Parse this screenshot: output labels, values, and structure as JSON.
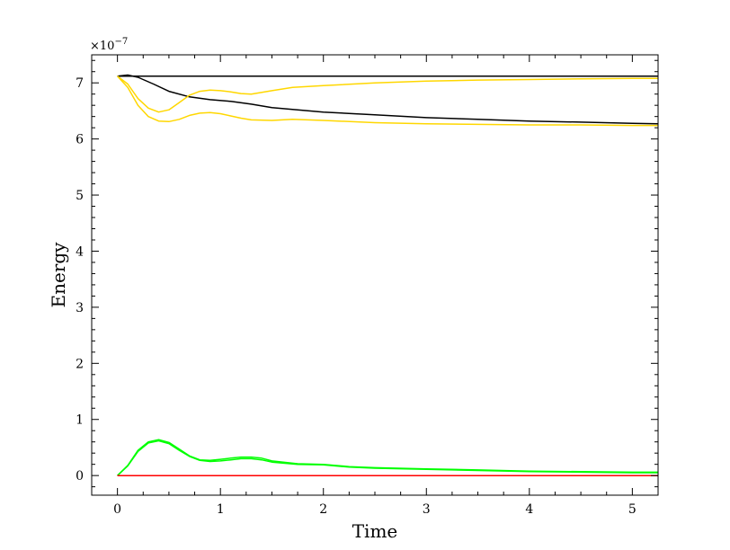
{
  "chart_data": {
    "type": "line",
    "title": "",
    "xlabel": "Time",
    "ylabel": "Energy",
    "y_scale_prefix": "×10",
    "y_scale_exponent": "−7",
    "xlim": [
      -0.25,
      5.25
    ],
    "ylim": [
      -0.35,
      7.5
    ],
    "x_ticks": [
      0,
      1,
      2,
      3,
      4,
      5
    ],
    "x_tick_labels": [
      "0",
      "1",
      "2",
      "3",
      "4",
      "5"
    ],
    "y_ticks": [
      0,
      1,
      2,
      3,
      4,
      5,
      6,
      7
    ],
    "y_tick_labels": [
      "0",
      "1",
      "2",
      "3",
      "4",
      "5",
      "6",
      "7"
    ],
    "grid": false,
    "series": [
      {
        "color": "#000000",
        "x": [
          0,
          0.5,
          1,
          2,
          3,
          4,
          5,
          5.25
        ],
        "y": [
          7.12,
          7.12,
          7.12,
          7.12,
          7.12,
          7.12,
          7.12,
          7.12
        ]
      },
      {
        "color": "#000000",
        "x": [
          0,
          0.1,
          0.2,
          0.35,
          0.5,
          0.7,
          0.9,
          1.1,
          1.3,
          1.5,
          1.75,
          2.0,
          2.5,
          3.0,
          3.5,
          4.0,
          4.5,
          5.0,
          5.25
        ],
        "y": [
          7.12,
          7.14,
          7.1,
          6.98,
          6.85,
          6.75,
          6.7,
          6.67,
          6.62,
          6.56,
          6.52,
          6.48,
          6.43,
          6.38,
          6.35,
          6.32,
          6.3,
          6.28,
          6.27
        ]
      },
      {
        "color": "#ffd700",
        "x": [
          0,
          0.1,
          0.2,
          0.3,
          0.4,
          0.5,
          0.6,
          0.7,
          0.8,
          0.9,
          1.0,
          1.1,
          1.2,
          1.3,
          1.5,
          1.7,
          2.0,
          2.5,
          3.0,
          3.5,
          4.0,
          4.5,
          5.0,
          5.25
        ],
        "y": [
          7.12,
          6.98,
          6.72,
          6.55,
          6.48,
          6.52,
          6.65,
          6.78,
          6.85,
          6.87,
          6.86,
          6.84,
          6.81,
          6.8,
          6.86,
          6.92,
          6.95,
          7.0,
          7.03,
          7.05,
          7.06,
          7.07,
          7.08,
          7.08
        ]
      },
      {
        "color": "#ffd700",
        "x": [
          0,
          0.1,
          0.2,
          0.3,
          0.4,
          0.5,
          0.6,
          0.7,
          0.8,
          0.9,
          1.0,
          1.1,
          1.2,
          1.3,
          1.5,
          1.7,
          2.0,
          2.5,
          3.0,
          3.5,
          4.0,
          4.5,
          5.0,
          5.25
        ],
        "y": [
          7.12,
          6.92,
          6.6,
          6.4,
          6.32,
          6.31,
          6.35,
          6.42,
          6.46,
          6.47,
          6.45,
          6.41,
          6.37,
          6.34,
          6.33,
          6.35,
          6.33,
          6.29,
          6.27,
          6.26,
          6.25,
          6.25,
          6.24,
          6.24
        ]
      },
      {
        "color": "#00ff00",
        "x": [
          0,
          0.1,
          0.2,
          0.3,
          0.4,
          0.5,
          0.6,
          0.7,
          0.8,
          0.9,
          1.0,
          1.1,
          1.2,
          1.3,
          1.4,
          1.5,
          1.75,
          2.0,
          2.25,
          2.5,
          3.0,
          3.5,
          4.0,
          4.5,
          5.0,
          5.25
        ],
        "y": [
          0.0,
          0.17,
          0.43,
          0.58,
          0.62,
          0.57,
          0.45,
          0.34,
          0.27,
          0.25,
          0.26,
          0.28,
          0.3,
          0.3,
          0.28,
          0.24,
          0.2,
          0.19,
          0.15,
          0.13,
          0.11,
          0.09,
          0.07,
          0.06,
          0.05,
          0.05
        ]
      },
      {
        "color": "#00ff00",
        "x": [
          0,
          0.1,
          0.2,
          0.3,
          0.4,
          0.5,
          0.6,
          0.7,
          0.8,
          0.9,
          1.0,
          1.1,
          1.2,
          1.3,
          1.4,
          1.5,
          1.75,
          2.0,
          2.25,
          2.5,
          3.0,
          3.5,
          4.0,
          4.5,
          5.0,
          5.25
        ],
        "y": [
          0.0,
          0.18,
          0.45,
          0.6,
          0.64,
          0.59,
          0.47,
          0.35,
          0.28,
          0.27,
          0.29,
          0.31,
          0.33,
          0.33,
          0.31,
          0.26,
          0.21,
          0.2,
          0.16,
          0.14,
          0.12,
          0.1,
          0.08,
          0.07,
          0.06,
          0.06
        ]
      },
      {
        "color": "#ff0000",
        "x": [
          0,
          1,
          2,
          3,
          4,
          5,
          5.25
        ],
        "y": [
          0,
          0,
          0,
          0,
          0,
          0,
          0
        ]
      }
    ]
  }
}
